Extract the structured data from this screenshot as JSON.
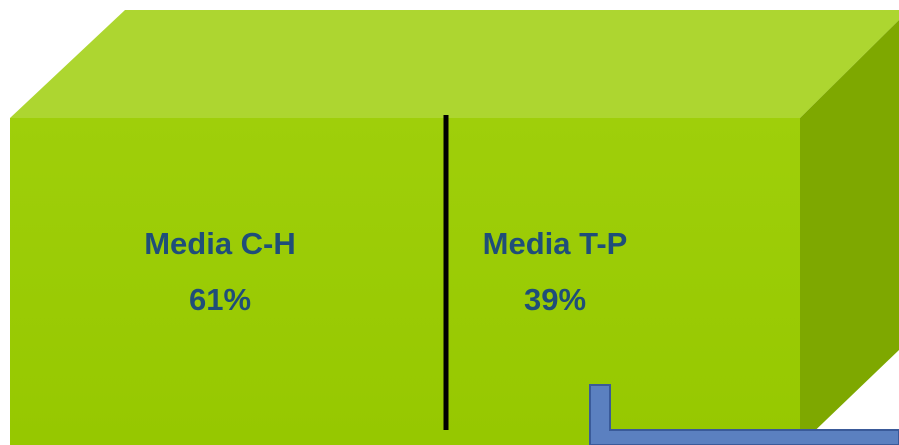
{
  "sections": [
    {
      "label": "Media C-H",
      "share": "61%"
    },
    {
      "label": "Media T-P",
      "share": "39%"
    }
  ]
}
